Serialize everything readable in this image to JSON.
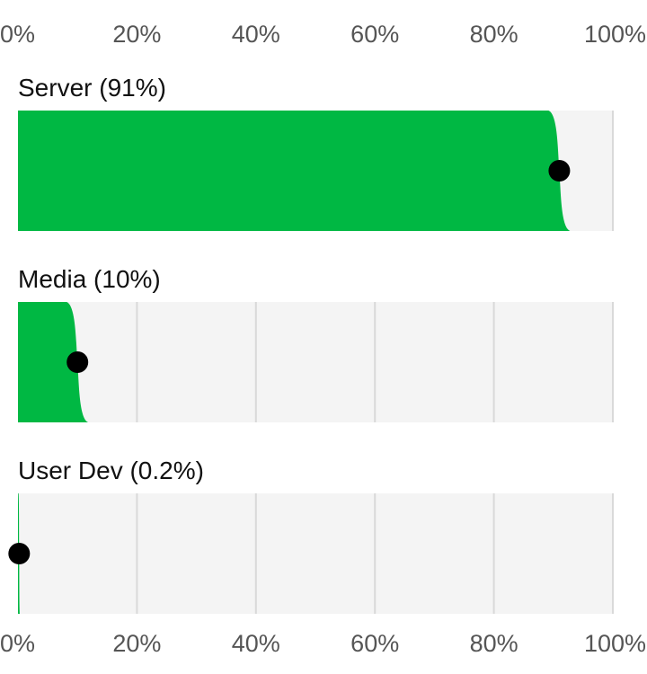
{
  "chart_data": {
    "type": "bar",
    "orientation": "horizontal",
    "x_ticks": [
      "0%",
      "20%",
      "40%",
      "60%",
      "80%",
      "100%"
    ],
    "x_tick_values": [
      0,
      20,
      40,
      60,
      80,
      100
    ],
    "xlim": [
      0,
      100
    ],
    "grid": true,
    "rows": [
      {
        "label": "Server (91%)",
        "value": 91
      },
      {
        "label": "Media (10%)",
        "value": 10
      },
      {
        "label": "User Dev (0.2%)",
        "value": 0.2
      }
    ],
    "colors": {
      "fill": "#00b843",
      "track": "#f4f4f4",
      "grid": "#d9d9d9",
      "marker": "#000000"
    }
  }
}
